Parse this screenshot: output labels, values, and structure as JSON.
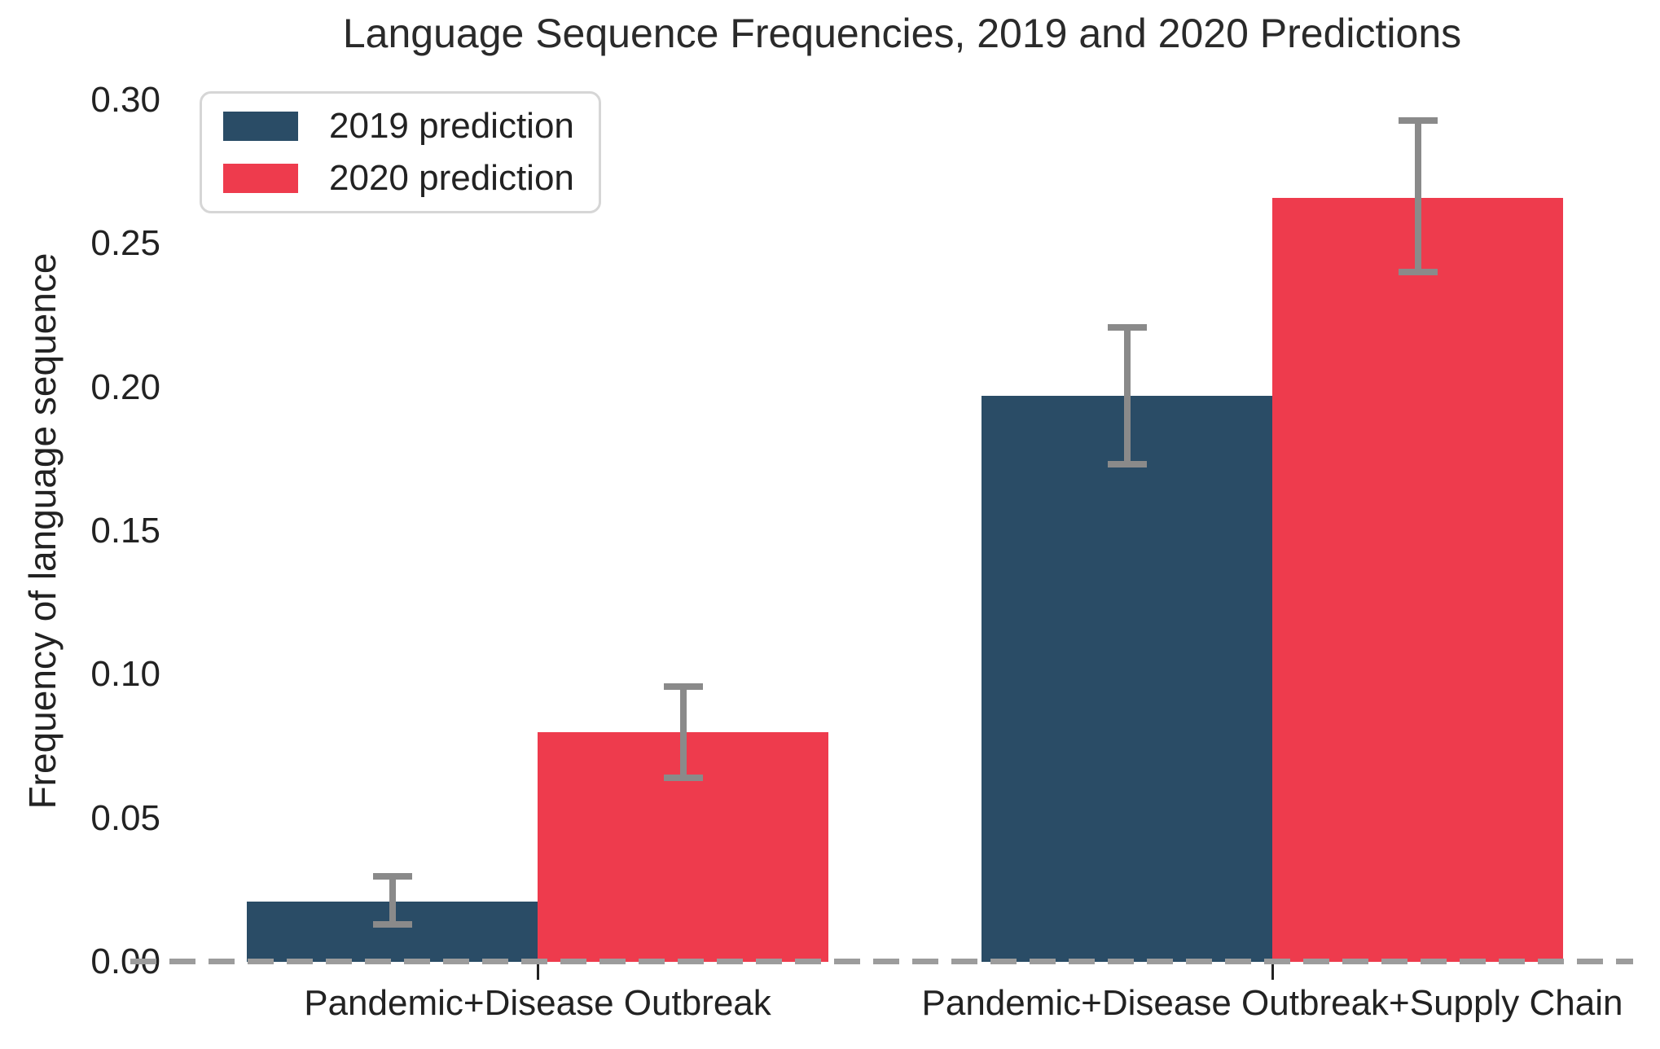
{
  "chart_data": {
    "type": "bar",
    "title": "Language Sequence Frequencies, 2019 and 2020 Predictions",
    "xlabel": "",
    "ylabel": "Frequency of language sequence",
    "ylim": [
      0,
      0.3
    ],
    "grid": false,
    "legend_position": "upper left",
    "yticks": [
      {
        "value": 0.0,
        "label": "0.00"
      },
      {
        "value": 0.05,
        "label": "0.05"
      },
      {
        "value": 0.1,
        "label": "0.10"
      },
      {
        "value": 0.15,
        "label": "0.15"
      },
      {
        "value": 0.2,
        "label": "0.20"
      },
      {
        "value": 0.25,
        "label": "0.25"
      },
      {
        "value": 0.3,
        "label": "0.30"
      }
    ],
    "categories": [
      "Pandemic+Disease Outbreak",
      "Pandemic+Disease Outbreak+Supply Chain"
    ],
    "series": [
      {
        "name": "2019 prediction",
        "color": "#2a4c66",
        "values": [
          0.021,
          0.197
        ],
        "error_low": [
          0.012,
          0.172
        ],
        "error_high": [
          0.031,
          0.222
        ]
      },
      {
        "name": "2020 prediction",
        "color": "#ee3b4d",
        "values": [
          0.08,
          0.266
        ],
        "error_low": [
          0.063,
          0.239
        ],
        "error_high": [
          0.097,
          0.294
        ]
      }
    ],
    "zero_line": {
      "style": "dashed",
      "color": "#9c9c9c"
    },
    "error_bar_color": "#8a8a8a"
  }
}
